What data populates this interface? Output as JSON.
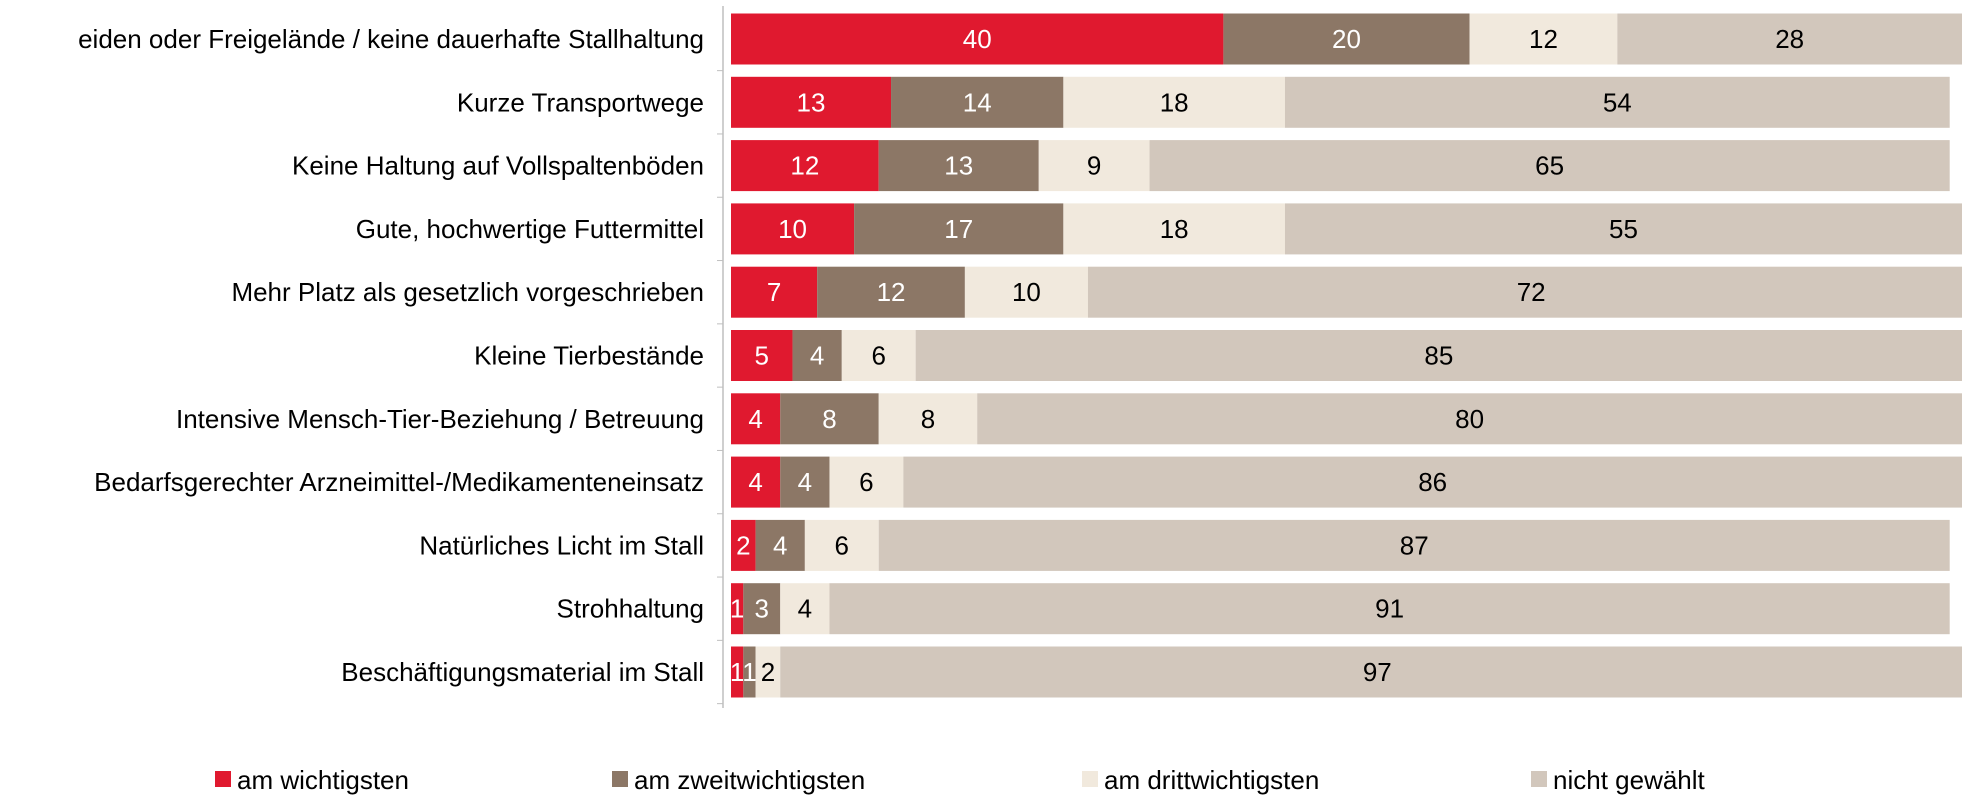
{
  "chart_data": {
    "type": "stacked-bar-horizontal",
    "categories": [
      "eiden oder Freigelände / keine dauerhafte Stallhaltung",
      "Kurze Transportwege",
      "Keine Haltung auf Vollspaltenböden",
      "Gute, hochwertige Futtermittel",
      "Mehr Platz als gesetzlich vorgeschrieben",
      "Kleine Tierbestände",
      "Intensive Mensch-Tier-Beziehung / Betreuung",
      "Bedarfsgerechter Arzneimittel-/Medikamenteneinsatz",
      "Natürliches Licht im Stall",
      "Strohhaltung",
      "Beschäftigungsmaterial im Stall"
    ],
    "series": [
      {
        "name": "am wichtigsten",
        "color": "#e0192f",
        "label_color": "#ffffff",
        "values": [
          40,
          13,
          12,
          10,
          7,
          5,
          4,
          4,
          2,
          1,
          1
        ]
      },
      {
        "name": "am zweitwichtigsten",
        "color": "#8c7766",
        "label_color": "#ffffff",
        "values": [
          20,
          14,
          13,
          17,
          12,
          4,
          8,
          4,
          4,
          3,
          1
        ]
      },
      {
        "name": "am drittwichtigsten",
        "color": "#f1e9dd",
        "label_color": "#000000",
        "values": [
          12,
          18,
          9,
          18,
          10,
          6,
          8,
          6,
          6,
          4,
          2
        ]
      },
      {
        "name": "nicht gewählt",
        "color": "#d2c7bc",
        "label_color": "#000000",
        "values": [
          28,
          54,
          65,
          55,
          72,
          85,
          80,
          86,
          87,
          91,
          97
        ]
      }
    ],
    "xlim": [
      0,
      100
    ],
    "legend": "bottom"
  }
}
